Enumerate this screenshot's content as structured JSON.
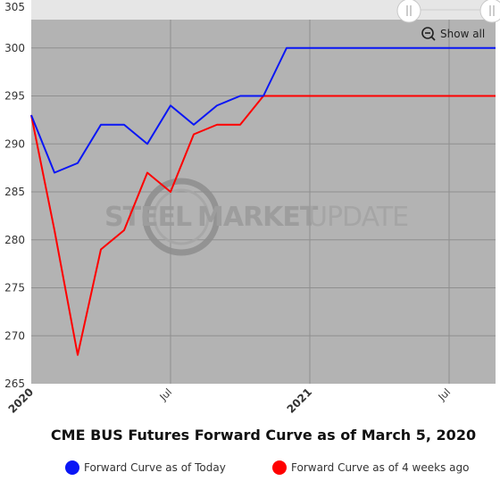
{
  "chart_data": {
    "type": "line",
    "title": "CME BUS Futures Forward Curve as of March 5, 2020",
    "xlabel": "",
    "ylabel": "",
    "ylim": [
      265,
      305
    ],
    "y_ticks": [
      "305",
      "300",
      "295",
      "290",
      "285",
      "280",
      "275",
      "270",
      "265"
    ],
    "x_tick_labels": [
      {
        "label": "2020",
        "major": true,
        "month_index": 0
      },
      {
        "label": "Jul",
        "major": false,
        "month_index": 6
      },
      {
        "label": "2021",
        "major": true,
        "month_index": 12
      },
      {
        "label": "Jul",
        "major": false,
        "month_index": 18
      }
    ],
    "x": [
      "2020-01",
      "2020-02",
      "2020-03",
      "2020-04",
      "2020-05",
      "2020-06",
      "2020-07",
      "2020-08",
      "2020-09",
      "2020-10",
      "2020-11",
      "2020-12",
      "2021-01",
      "2021-02",
      "2021-03",
      "2021-04",
      "2021-05",
      "2021-06",
      "2021-07",
      "2021-08",
      "2021-09"
    ],
    "series": [
      {
        "name": "Forward Curve as of Today",
        "color": "#0a16f5",
        "values": [
          293,
          287,
          288,
          292,
          292,
          290,
          294,
          292,
          294,
          295,
          295,
          300,
          300,
          300,
          300,
          300,
          300,
          300,
          300,
          300,
          300
        ]
      },
      {
        "name": "Forward Curve as of 4 weeks ago",
        "color": "#ff0000",
        "values": [
          293,
          281,
          268,
          279,
          281,
          287,
          285,
          291,
          292,
          292,
          295,
          295,
          295,
          295,
          295,
          295,
          295,
          295,
          295,
          295,
          295
        ]
      }
    ],
    "grid": true,
    "legend_position": "bottom",
    "plot_background": "#b3b3b3",
    "navigator_background": "#e6e6e6"
  },
  "controls": {
    "show_all_label": "Show all",
    "zoom_icon": "magnifier-minus-icon",
    "slider_handle_icon": "slider-handle-icon"
  },
  "watermark": {
    "part1": "STEEL",
    "part2": "MARKET",
    "part3": "UPDATE"
  }
}
